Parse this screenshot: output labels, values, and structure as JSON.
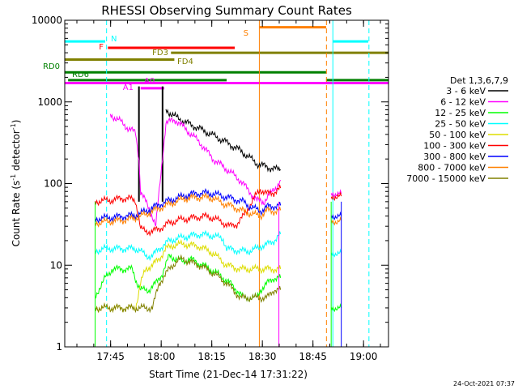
{
  "chart_data": {
    "type": "line",
    "title": "RHESSI Observing Summary Count Rates",
    "xlabel": "Start Time (21-Dec-14 17:31:22)",
    "ylabel_main": "Count Rate (s",
    "ylabel_sup1": "-1",
    "ylabel_mid": " detector",
    "ylabel_sup2": "-1",
    "ylabel_end": ")",
    "footer": "24-Oct-2021 07:37",
    "x_scale": "time",
    "x_range_minutes": [
      0,
      96
    ],
    "x_ticks": [
      {
        "label": "17:45",
        "t": 13.6
      },
      {
        "label": "18:00",
        "t": 28.6
      },
      {
        "label": "18:15",
        "t": 43.6
      },
      {
        "label": "18:30",
        "t": 58.6
      },
      {
        "label": "18:45",
        "t": 73.6
      },
      {
        "label": "19:00",
        "t": 88.6
      }
    ],
    "y_scale": "log",
    "ylim": [
      1,
      10000
    ],
    "y_ticks": [
      {
        "label": "1",
        "v": 1
      },
      {
        "label": "10",
        "v": 10
      },
      {
        "label": "100",
        "v": 100
      },
      {
        "label": "1000",
        "v": 1000
      },
      {
        "label": "10000",
        "v": 10000
      }
    ],
    "legend_title": "Det 1,3,6,7,9",
    "legend_position": "right",
    "series": [
      {
        "name": "3 - 6 keV",
        "color": "#000000",
        "points": [
          [
            30,
            800
          ],
          [
            33,
            650
          ],
          [
            36,
            560
          ],
          [
            40,
            470
          ],
          [
            44,
            390
          ],
          [
            48,
            320
          ],
          [
            52,
            255
          ],
          [
            55,
            205
          ],
          [
            57,
            175
          ],
          [
            58,
            170
          ],
          [
            60,
            160
          ],
          [
            62,
            152
          ],
          [
            63,
            150
          ],
          [
            64,
            148
          ]
        ]
      },
      {
        "name": "6 - 12 keV",
        "color": "#ff00ff",
        "points": [
          [
            13.5,
            700
          ],
          [
            16,
            600
          ],
          [
            19,
            470
          ],
          [
            21,
            420
          ],
          [
            22,
            200
          ],
          [
            22.5,
            80
          ],
          [
            24,
            60
          ],
          [
            26,
            40
          ],
          [
            27,
            30
          ],
          [
            30,
            560
          ],
          [
            33,
            600
          ],
          [
            36,
            460
          ],
          [
            40,
            320
          ],
          [
            44,
            200
          ],
          [
            48,
            150
          ],
          [
            52,
            110
          ],
          [
            55,
            78
          ],
          [
            57,
            62
          ],
          [
            59,
            60
          ],
          [
            61,
            75
          ],
          [
            63,
            95
          ],
          [
            64,
            110
          ]
        ]
      },
      {
        "name": "12 - 25 keV",
        "color": "#00ff00",
        "points": [
          [
            9,
            4
          ],
          [
            10,
            5
          ],
          [
            12,
            7
          ],
          [
            13.2,
            8
          ],
          [
            14,
            9
          ],
          [
            17,
            9
          ],
          [
            20,
            9
          ],
          [
            21.5,
            6
          ],
          [
            22.5,
            5
          ],
          [
            25,
            5
          ],
          [
            27,
            6
          ],
          [
            29,
            8
          ],
          [
            31,
            13
          ],
          [
            33,
            12
          ],
          [
            35,
            11
          ],
          [
            37,
            12
          ],
          [
            39,
            11
          ],
          [
            41,
            10
          ],
          [
            43,
            9
          ],
          [
            45,
            8
          ],
          [
            47,
            7
          ],
          [
            49,
            6
          ],
          [
            51,
            5
          ],
          [
            53,
            4
          ],
          [
            55,
            4
          ],
          [
            57,
            4
          ],
          [
            58,
            5
          ],
          [
            60,
            6
          ],
          [
            62,
            7
          ],
          [
            64,
            7
          ]
        ]
      },
      {
        "name": "25 - 50 keV",
        "color": "#00ffff",
        "points": [
          [
            9,
            15
          ],
          [
            12,
            16
          ],
          [
            15,
            16
          ],
          [
            18,
            16
          ],
          [
            21,
            16
          ],
          [
            22.5,
            15
          ],
          [
            24,
            13
          ],
          [
            26,
            13
          ],
          [
            28,
            16
          ],
          [
            31,
            20
          ],
          [
            35,
            22
          ],
          [
            40,
            24
          ],
          [
            44,
            23
          ],
          [
            47,
            21
          ],
          [
            48,
            16
          ],
          [
            52,
            15
          ],
          [
            55,
            15
          ],
          [
            57,
            16
          ],
          [
            58,
            17
          ],
          [
            60,
            18
          ],
          [
            62,
            20
          ],
          [
            64,
            24
          ]
        ]
      },
      {
        "name": "50 - 100 keV",
        "color": "#dddd00",
        "points": [
          [
            9,
            3
          ],
          [
            12,
            3
          ],
          [
            15,
            3
          ],
          [
            18,
            3
          ],
          [
            21,
            3
          ],
          [
            22.5,
            6
          ],
          [
            24,
            9
          ],
          [
            26,
            10
          ],
          [
            28,
            12
          ],
          [
            30,
            16
          ],
          [
            33,
            18
          ],
          [
            36,
            18
          ],
          [
            40,
            17
          ],
          [
            44,
            14
          ],
          [
            48,
            10
          ],
          [
            52,
            9
          ],
          [
            55,
            9
          ],
          [
            57,
            9
          ],
          [
            58,
            9
          ],
          [
            60,
            9
          ],
          [
            62,
            9
          ],
          [
            64,
            9
          ]
        ]
      },
      {
        "name": "100 - 300 keV",
        "color": "#ff0000",
        "points": [
          [
            9,
            60
          ],
          [
            11,
            62
          ],
          [
            13,
            62
          ],
          [
            15,
            64
          ],
          [
            17,
            66
          ],
          [
            19,
            66
          ],
          [
            21,
            62
          ],
          [
            22.5,
            28
          ],
          [
            24,
            26
          ],
          [
            26,
            26
          ],
          [
            28,
            28
          ],
          [
            31,
            33
          ],
          [
            34,
            36
          ],
          [
            38,
            38
          ],
          [
            41,
            40
          ],
          [
            44,
            38
          ],
          [
            47,
            33
          ],
          [
            49,
            30
          ],
          [
            51,
            32
          ],
          [
            53,
            40
          ],
          [
            55,
            55
          ],
          [
            57,
            75
          ],
          [
            58,
            85
          ],
          [
            60,
            75
          ],
          [
            62,
            78
          ],
          [
            64,
            88
          ]
        ]
      },
      {
        "name": "300 - 800 keV",
        "color": "#0000ff",
        "points": [
          [
            9,
            37
          ],
          [
            12,
            38
          ],
          [
            15,
            39
          ],
          [
            18,
            40
          ],
          [
            21,
            41
          ],
          [
            24,
            46
          ],
          [
            27,
            53
          ],
          [
            30,
            60
          ],
          [
            33,
            66
          ],
          [
            36,
            72
          ],
          [
            39,
            76
          ],
          [
            42,
            77
          ],
          [
            44,
            75
          ],
          [
            47,
            70
          ],
          [
            50,
            65
          ],
          [
            53,
            60
          ],
          [
            55,
            52
          ],
          [
            57,
            48
          ],
          [
            58,
            46
          ],
          [
            60,
            52
          ],
          [
            62,
            53
          ],
          [
            64,
            54
          ]
        ]
      },
      {
        "name": "800 - 7000 keV",
        "color": "#ff8000",
        "points": [
          [
            9,
            33
          ],
          [
            12,
            34
          ],
          [
            15,
            35
          ],
          [
            18,
            36
          ],
          [
            21,
            38
          ],
          [
            24,
            42
          ],
          [
            27,
            48
          ],
          [
            30,
            54
          ],
          [
            33,
            60
          ],
          [
            36,
            66
          ],
          [
            39,
            68
          ],
          [
            42,
            68
          ],
          [
            44,
            66
          ],
          [
            47,
            57
          ],
          [
            50,
            52
          ],
          [
            53,
            46
          ],
          [
            55,
            43
          ],
          [
            57,
            41
          ],
          [
            58,
            40
          ],
          [
            60,
            47
          ],
          [
            62,
            46
          ],
          [
            64,
            47
          ]
        ]
      },
      {
        "name": "7000 - 15000 keV",
        "color": "#808000",
        "points": [
          [
            9,
            3
          ],
          [
            12,
            3
          ],
          [
            15,
            3
          ],
          [
            18,
            3
          ],
          [
            21,
            3
          ],
          [
            22.5,
            3
          ],
          [
            24,
            3
          ],
          [
            26,
            3
          ],
          [
            28,
            6
          ],
          [
            31,
            9
          ],
          [
            33,
            11
          ],
          [
            35,
            12
          ],
          [
            37,
            11
          ],
          [
            40,
            10
          ],
          [
            42,
            9
          ],
          [
            44,
            8
          ],
          [
            46,
            7
          ],
          [
            48,
            6
          ],
          [
            50,
            5
          ],
          [
            52,
            4
          ],
          [
            55,
            4
          ],
          [
            57,
            4
          ],
          [
            58,
            4
          ],
          [
            60,
            4
          ],
          [
            62,
            5
          ],
          [
            64,
            5
          ]
        ]
      }
    ],
    "late_series": [
      {
        "name": "6 - 12 keV",
        "color": "#ff00ff",
        "points": [
          [
            79,
            75
          ],
          [
            81,
            75
          ],
          [
            82,
            75
          ]
        ]
      },
      {
        "name": "100 - 300 keV",
        "color": "#ff0000",
        "points": [
          [
            79,
            68
          ],
          [
            81,
            70
          ],
          [
            82,
            70
          ]
        ]
      },
      {
        "name": "300 - 800 keV",
        "color": "#0000ff",
        "points": [
          [
            79,
            40
          ],
          [
            81,
            40
          ],
          [
            82,
            40
          ]
        ]
      },
      {
        "name": "800 - 7000 keV",
        "color": "#ff8000",
        "points": [
          [
            79,
            35
          ],
          [
            81,
            34
          ],
          [
            82,
            35
          ]
        ]
      },
      {
        "name": "25 - 50 keV",
        "color": "#00ffff",
        "points": [
          [
            79,
            14
          ],
          [
            81,
            14
          ],
          [
            82,
            14
          ]
        ]
      },
      {
        "name": "12 - 25 keV",
        "color": "#00ff00",
        "points": [
          [
            79,
            3
          ],
          [
            81,
            3
          ],
          [
            82,
            3
          ]
        ]
      }
    ],
    "flag_labels": [
      {
        "text": "N",
        "color": "#00ffff"
      },
      {
        "text": "F",
        "color": "#ff0000"
      },
      {
        "text": "FD3",
        "color": "#808000"
      },
      {
        "text": "FD4",
        "color": "#808000"
      },
      {
        "text": "RD0",
        "color": "#008000"
      },
      {
        "text": "RD6",
        "color": "#008000"
      },
      {
        "text": "A0",
        "color": "#ff00ff"
      },
      {
        "text": "A1",
        "color": "#ff00ff"
      },
      {
        "text": "S",
        "color": "#ff8000"
      }
    ],
    "flags": [
      {
        "color": "#00ffff",
        "value": 5500,
        "t0": 0,
        "t1": 12
      },
      {
        "color": "#00ffff",
        "value": 5500,
        "t0": 79.5,
        "t1": 90
      },
      {
        "color": "#ff0000",
        "value": 4600,
        "t0": 12.8,
        "t1": 50.4
      },
      {
        "color": "#ff8000",
        "value": 8200,
        "t0": 57.7,
        "t1": 77.5
      },
      {
        "color": "#808000",
        "value": 4000,
        "t0": 31.5,
        "t1": 96
      },
      {
        "color": "#808000",
        "value": 3300,
        "t0": 0,
        "t1": 32.5
      },
      {
        "color": "#008000",
        "value": 2300,
        "t0": 0,
        "t1": 77.5
      },
      {
        "color": "#008000",
        "value": 1850,
        "t0": 1,
        "t1": 48
      },
      {
        "color": "#008000",
        "value": 1850,
        "t0": 77.5,
        "t1": 96
      },
      {
        "color": "#ff00ff",
        "value": 1700,
        "t0": 0,
        "t1": 96
      },
      {
        "color": "#ff00ff",
        "value": 1470,
        "t0": 22.5,
        "t1": 29.5
      }
    ],
    "vlines": [
      {
        "color": "#00ffff",
        "t": 12.4,
        "dash": true
      },
      {
        "color": "#ff8000",
        "t": 57.7,
        "dash": false
      },
      {
        "color": "#ff8000",
        "t": 77.6,
        "dash": true
      },
      {
        "color": "#00ffff",
        "t": 79.5,
        "dash": false
      },
      {
        "color": "#00ffff",
        "t": 90.2,
        "dash": true
      },
      {
        "color": "#000000",
        "t": 22.0,
        "dash": false
      },
      {
        "color": "#000000",
        "t": 29.0,
        "dash": false
      }
    ]
  }
}
